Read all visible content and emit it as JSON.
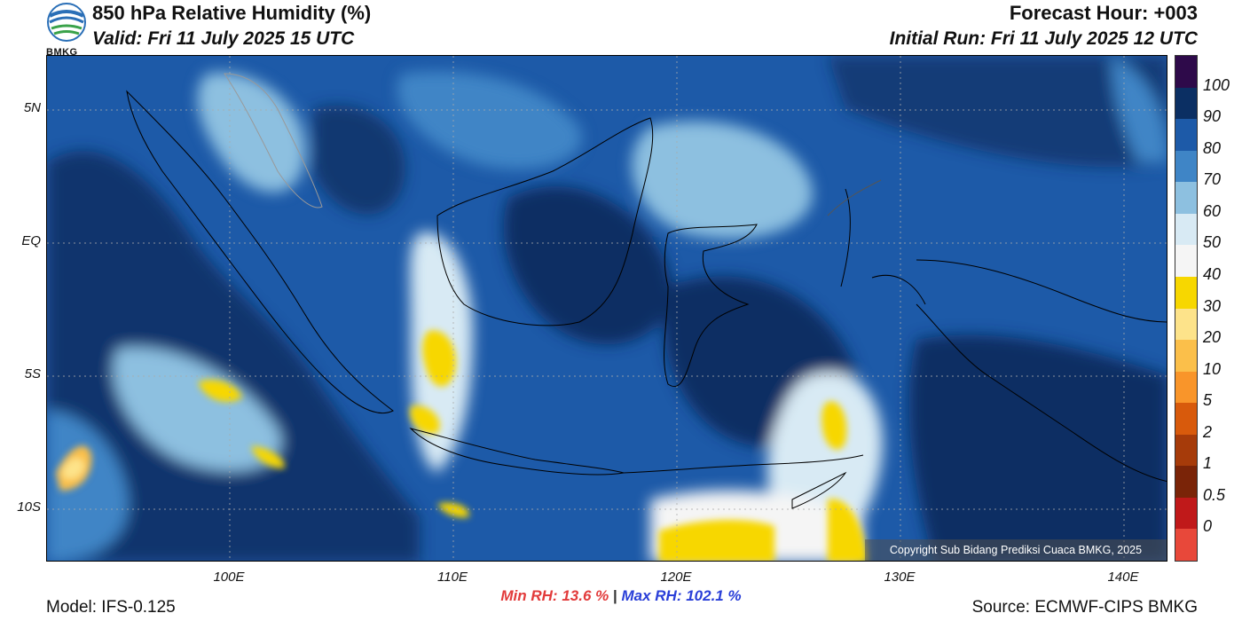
{
  "header": {
    "title": "850 hPa Relative Humidity (%)",
    "valid": "Valid: Fri 11 July 2025 15 UTC",
    "forecast_hour": "Forecast Hour: +003",
    "initial_run": "Initial Run: Fri 11 July 2025 12 UTC",
    "logo_text": "BMKG"
  },
  "map": {
    "lat_labels": [
      "5N",
      "EQ",
      "5S",
      "10S"
    ],
    "lon_labels": [
      "100E",
      "110E",
      "120E",
      "130E",
      "140E"
    ],
    "copyright": "Copyright Sub Bidang Prediksi Cuaca BMKG, 2025"
  },
  "colorbar": {
    "labels": [
      "100",
      "90",
      "80",
      "70",
      "60",
      "50",
      "40",
      "30",
      "20",
      "10",
      "5",
      "2",
      "1",
      "0.5",
      "0"
    ],
    "colors": [
      "#2e0a4a",
      "#0b2f63",
      "#1d5aa8",
      "#3f85c6",
      "#8dc0e0",
      "#d8eaf4",
      "#f5f5f5",
      "#f7d700",
      "#fde38a",
      "#fbbf4a",
      "#f9952a",
      "#d85a0c",
      "#a63b0a",
      "#7a2408",
      "#c0191a",
      "#e8483a"
    ]
  },
  "footer": {
    "min_rh": "Min RH:  13.6 %",
    "separator": "|",
    "max_rh": "Max RH: 102.1 %",
    "model": "Model: IFS-0.125",
    "source": "Source: ECMWF-CIPS BMKG"
  }
}
